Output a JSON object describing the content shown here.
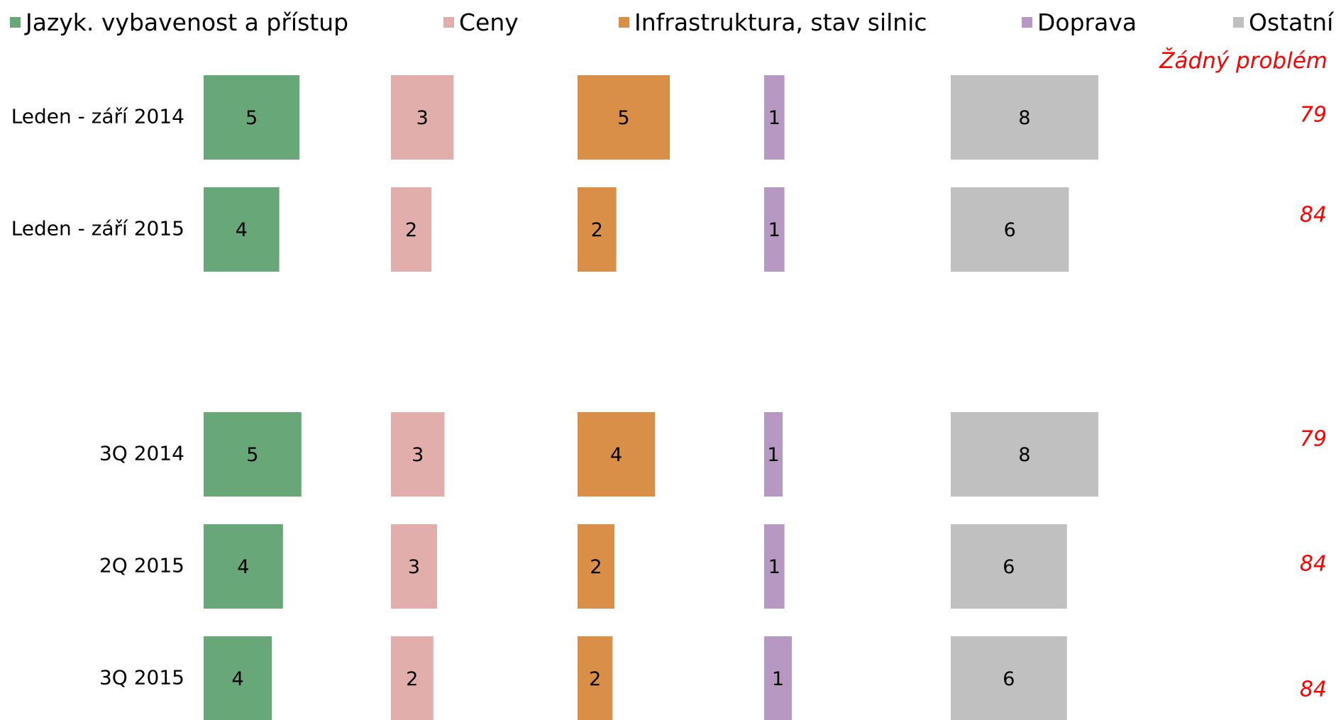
{
  "chart_data": {
    "type": "bar",
    "orientation": "horizontal",
    "layout": "side-by-side panels per category",
    "series": [
      {
        "name": "Jazyk. vybavenost a přístup",
        "color": "#68a878",
        "values": [
          5,
          4,
          null,
          5,
          4,
          4
        ]
      },
      {
        "name": "Ceny",
        "color": "#e2aeac",
        "values": [
          3,
          2,
          null,
          3,
          3,
          2
        ]
      },
      {
        "name": "Infrastruktura, stav silnic",
        "color": "#d98f48",
        "values": [
          5,
          2,
          null,
          4,
          2,
          2
        ]
      },
      {
        "name": "Doprava",
        "color": "#b698c2",
        "values": [
          1,
          1,
          null,
          1,
          1,
          1
        ]
      },
      {
        "name": "Ostatní",
        "color": "#c0c0c0",
        "values": [
          8,
          6,
          null,
          8,
          6,
          6
        ]
      }
    ],
    "categories": [
      "Leden - září 2014",
      "Leden - září 2015",
      "",
      "3Q 2014",
      "2Q 2015",
      "3Q 2015"
    ],
    "bar_widths_exact": [
      [
        5.2,
        3.4,
        5.0,
        1.1,
        8.0
      ],
      [
        4.1,
        2.2,
        2.1,
        1.1,
        6.4
      ],
      [
        null,
        null,
        null,
        null,
        null
      ],
      [
        5.3,
        2.9,
        4.2,
        1.0,
        8.0
      ],
      [
        4.3,
        2.5,
        2.0,
        1.1,
        6.3
      ],
      [
        3.7,
        2.3,
        1.9,
        1.5,
        6.3
      ]
    ],
    "side_column": {
      "title": "Žádný problém",
      "color": "#ff0000",
      "values": [
        79,
        84,
        null,
        79,
        84,
        84
      ]
    },
    "legend_position": "top",
    "grid": false
  }
}
